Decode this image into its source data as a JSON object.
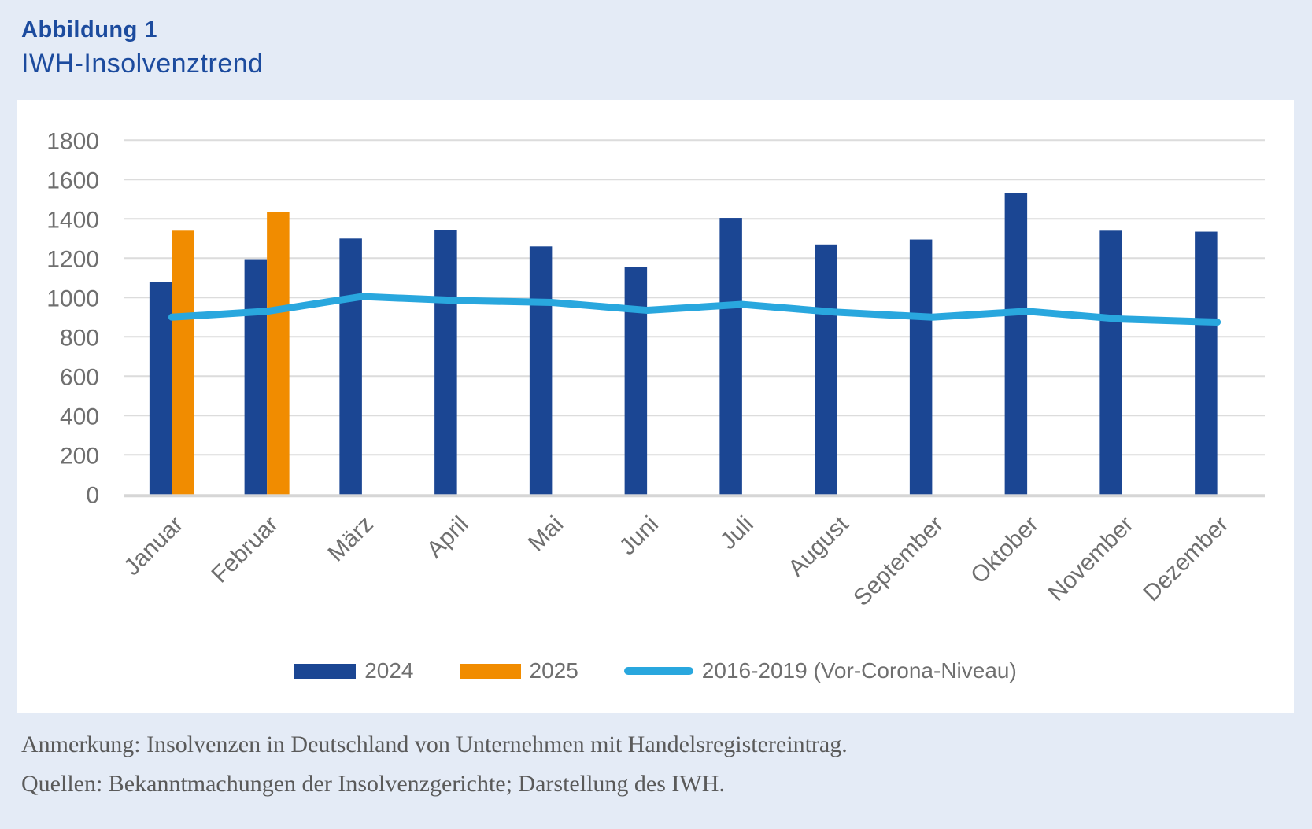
{
  "header": {
    "figure_label": "Abbildung 1",
    "title": "IWH-Insolvenztrend"
  },
  "chart_data": {
    "type": "bar",
    "categories": [
      "Januar",
      "Februar",
      "März",
      "April",
      "Mai",
      "Juni",
      "Juli",
      "August",
      "September",
      "Oktober",
      "November",
      "Dezember"
    ],
    "series": [
      {
        "name": "2024",
        "type": "bar",
        "color": "#1b4693",
        "values": [
          1080,
          1195,
          1300,
          1345,
          1260,
          1155,
          1405,
          1270,
          1295,
          1530,
          1340,
          1335
        ]
      },
      {
        "name": "2025",
        "type": "bar",
        "color": "#f18c00",
        "values": [
          1340,
          1435,
          null,
          null,
          null,
          null,
          null,
          null,
          null,
          null,
          null,
          null
        ]
      },
      {
        "name": "2016-2019 (Vor-Corona-Niveau)",
        "type": "line",
        "color": "#29a7de",
        "values": [
          900,
          930,
          1005,
          985,
          975,
          935,
          965,
          925,
          900,
          930,
          890,
          875
        ]
      }
    ],
    "title": "IWH-Insolvenztrend",
    "xlabel": "",
    "ylabel": "",
    "ylim": [
      0,
      1800
    ],
    "ytick_step": 200,
    "grid": true,
    "legend_position": "bottom"
  },
  "colors": {
    "page_background": "#e4ebf6",
    "panel_background": "#ffffff",
    "brand_blue": "#1c4b9e",
    "bar_2024": "#1b4693",
    "bar_2025": "#f18c00",
    "line_2016_2019": "#29a7de",
    "gridline": "#dcdcdc",
    "axis_line": "#d6d6d6",
    "axis_text": "#6f6f6f",
    "note_text": "#5a5a5a"
  },
  "notes": {
    "line1": "Anmerkung: Insolvenzen in Deutschland von Unternehmen mit Handelsregistereintrag.",
    "line2": "Quellen: Bekanntmachungen der Insolvenzgerichte; Darstellung des IWH."
  }
}
